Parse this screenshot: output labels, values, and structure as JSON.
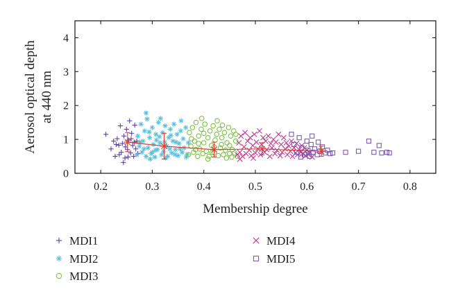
{
  "chart_data": {
    "type": "scatter",
    "xlabel": "Membership degree",
    "ylabel_lines": [
      "Aerosol optical depth",
      "at 440 nm"
    ],
    "xlim": [
      0.15,
      0.85
    ],
    "ylim": [
      0,
      4.5
    ],
    "xticks": [
      0.2,
      0.3,
      0.4,
      0.5,
      0.6,
      0.7,
      0.8
    ],
    "yticks": [
      0,
      1,
      2,
      3,
      4
    ],
    "grid": false,
    "legend_position": "below",
    "series": [
      {
        "name": "MDI1",
        "marker": "plus",
        "color": "#5b3fa8",
        "points": [
          [
            0.21,
            1.15
          ],
          [
            0.22,
            0.72
          ],
          [
            0.225,
            0.95
          ],
          [
            0.228,
            0.5
          ],
          [
            0.232,
            1.02
          ],
          [
            0.235,
            0.83
          ],
          [
            0.238,
            1.4
          ],
          [
            0.24,
            0.62
          ],
          [
            0.242,
            0.88
          ],
          [
            0.245,
            1.1
          ],
          [
            0.247,
            0.45
          ],
          [
            0.25,
            1.3
          ],
          [
            0.252,
            0.7
          ],
          [
            0.254,
            0.98
          ],
          [
            0.256,
            1.55
          ],
          [
            0.258,
            0.6
          ],
          [
            0.26,
            1.18
          ],
          [
            0.262,
            0.82
          ],
          [
            0.264,
            0.5
          ],
          [
            0.266,
            1.42
          ],
          [
            0.268,
            0.72
          ],
          [
            0.27,
            0.95
          ],
          [
            0.272,
            0.58
          ],
          [
            0.244,
            0.32
          ],
          [
            0.23,
            0.85
          ],
          [
            0.236,
            0.55
          ],
          [
            0.248,
            0.78
          ],
          [
            0.259,
            1.02
          ],
          [
            0.265,
            0.92
          ],
          [
            0.253,
            0.48
          ]
        ]
      },
      {
        "name": "MDI2",
        "marker": "asterisk",
        "color": "#5bc0de",
        "points": [
          [
            0.27,
            0.55
          ],
          [
            0.272,
            1.1
          ],
          [
            0.275,
            0.8
          ],
          [
            0.278,
            1.45
          ],
          [
            0.28,
            0.62
          ],
          [
            0.282,
            0.95
          ],
          [
            0.285,
            1.25
          ],
          [
            0.288,
            0.5
          ],
          [
            0.29,
            1.6
          ],
          [
            0.292,
            0.75
          ],
          [
            0.295,
            1.05
          ],
          [
            0.298,
            0.58
          ],
          [
            0.3,
            1.35
          ],
          [
            0.302,
            0.85
          ],
          [
            0.305,
            0.48
          ],
          [
            0.307,
            1.15
          ],
          [
            0.31,
            0.7
          ],
          [
            0.312,
            1.5
          ],
          [
            0.315,
            0.9
          ],
          [
            0.318,
            0.55
          ],
          [
            0.32,
            1.2
          ],
          [
            0.322,
            0.65
          ],
          [
            0.325,
            1.4
          ],
          [
            0.328,
            0.8
          ],
          [
            0.33,
            0.5
          ],
          [
            0.332,
            1.05
          ],
          [
            0.335,
            1.3
          ],
          [
            0.338,
            0.6
          ],
          [
            0.34,
            0.95
          ],
          [
            0.342,
            1.45
          ],
          [
            0.345,
            0.7
          ],
          [
            0.348,
            1.15
          ],
          [
            0.35,
            0.52
          ],
          [
            0.352,
            0.88
          ],
          [
            0.355,
            1.25
          ],
          [
            0.358,
            0.62
          ],
          [
            0.36,
            1.02
          ],
          [
            0.362,
            0.75
          ],
          [
            0.365,
            1.35
          ],
          [
            0.368,
            0.55
          ],
          [
            0.37,
            0.9
          ],
          [
            0.288,
            1.78
          ],
          [
            0.296,
            0.42
          ],
          [
            0.308,
            0.98
          ],
          [
            0.316,
            1.62
          ],
          [
            0.326,
            0.45
          ],
          [
            0.334,
            0.72
          ],
          [
            0.346,
            0.92
          ],
          [
            0.356,
            1.55
          ],
          [
            0.366,
            0.48
          ],
          [
            0.284,
            0.72
          ],
          [
            0.3,
            0.62
          ],
          [
            0.314,
            1.08
          ],
          [
            0.324,
            0.92
          ],
          [
            0.344,
            0.55
          ],
          [
            0.354,
            0.72
          ],
          [
            0.276,
            0.92
          ],
          [
            0.294,
            1.22
          ],
          [
            0.306,
            0.68
          ],
          [
            0.336,
            1.12
          ]
        ]
      },
      {
        "name": "MDI3",
        "marker": "circle",
        "color": "#7dc242",
        "points": [
          [
            0.37,
            0.55
          ],
          [
            0.372,
            1.2
          ],
          [
            0.375,
            0.8
          ],
          [
            0.378,
            1.35
          ],
          [
            0.38,
            0.62
          ],
          [
            0.382,
            0.95
          ],
          [
            0.385,
            1.5
          ],
          [
            0.388,
            0.5
          ],
          [
            0.39,
            1.1
          ],
          [
            0.392,
            0.72
          ],
          [
            0.395,
            1.3
          ],
          [
            0.398,
            0.58
          ],
          [
            0.4,
            0.9
          ],
          [
            0.402,
            1.45
          ],
          [
            0.405,
            0.65
          ],
          [
            0.408,
            1.05
          ],
          [
            0.41,
            0.5
          ],
          [
            0.412,
            1.25
          ],
          [
            0.415,
            0.82
          ],
          [
            0.418,
            1.4
          ],
          [
            0.42,
            0.6
          ],
          [
            0.422,
            0.98
          ],
          [
            0.425,
            1.15
          ],
          [
            0.428,
            0.52
          ],
          [
            0.43,
            1.3
          ],
          [
            0.432,
            0.75
          ],
          [
            0.435,
            1.05
          ],
          [
            0.438,
            0.55
          ],
          [
            0.44,
            1.2
          ],
          [
            0.442,
            0.68
          ],
          [
            0.445,
            0.9
          ],
          [
            0.448,
            1.35
          ],
          [
            0.45,
            0.58
          ],
          [
            0.452,
            1.1
          ],
          [
            0.455,
            0.7
          ],
          [
            0.458,
            1.25
          ],
          [
            0.46,
            0.6
          ],
          [
            0.462,
            0.95
          ],
          [
            0.465,
            0.5
          ],
          [
            0.396,
            1.62
          ],
          [
            0.408,
            0.42
          ],
          [
            0.426,
            1.55
          ],
          [
            0.444,
            0.45
          ],
          [
            0.384,
            0.7
          ],
          [
            0.4,
            1.18
          ],
          [
            0.416,
            0.62
          ],
          [
            0.434,
            0.85
          ],
          [
            0.454,
            0.48
          ],
          [
            0.376,
            1.02
          ],
          [
            0.39,
            0.88
          ],
          [
            0.42,
            0.78
          ],
          [
            0.436,
            1.42
          ],
          [
            0.45,
            0.82
          ],
          [
            0.462,
            1.15
          ]
        ]
      },
      {
        "name": "MDI4",
        "marker": "x",
        "color": "#c0398f",
        "points": [
          [
            0.465,
            0.55
          ],
          [
            0.468,
            0.9
          ],
          [
            0.47,
            0.62
          ],
          [
            0.472,
            1.1
          ],
          [
            0.475,
            0.5
          ],
          [
            0.478,
            0.78
          ],
          [
            0.48,
            1.2
          ],
          [
            0.482,
            0.58
          ],
          [
            0.485,
            0.95
          ],
          [
            0.488,
            0.68
          ],
          [
            0.49,
            1.05
          ],
          [
            0.492,
            0.52
          ],
          [
            0.495,
            0.82
          ],
          [
            0.498,
            1.15
          ],
          [
            0.5,
            0.6
          ],
          [
            0.502,
            0.92
          ],
          [
            0.505,
            0.72
          ],
          [
            0.508,
            1.25
          ],
          [
            0.51,
            0.55
          ],
          [
            0.512,
            0.85
          ],
          [
            0.515,
            1.05
          ],
          [
            0.518,
            0.62
          ],
          [
            0.52,
            0.95
          ],
          [
            0.522,
            0.7
          ],
          [
            0.525,
            1.1
          ],
          [
            0.528,
            0.5
          ],
          [
            0.53,
            0.88
          ],
          [
            0.532,
            0.75
          ],
          [
            0.535,
            1.0
          ],
          [
            0.538,
            0.58
          ],
          [
            0.54,
            0.92
          ],
          [
            0.542,
            0.68
          ],
          [
            0.545,
            1.15
          ],
          [
            0.548,
            0.52
          ],
          [
            0.55,
            0.85
          ],
          [
            0.552,
            0.62
          ],
          [
            0.555,
            1.05
          ],
          [
            0.558,
            0.72
          ],
          [
            0.56,
            0.9
          ],
          [
            0.562,
            0.55
          ],
          [
            0.565,
            0.8
          ],
          [
            0.568,
            0.65
          ],
          [
            0.57,
            0.95
          ],
          [
            0.572,
            0.5
          ],
          [
            0.575,
            0.75
          ],
          [
            0.578,
            0.6
          ],
          [
            0.58,
            0.88
          ],
          [
            0.582,
            0.55
          ],
          [
            0.585,
            0.7
          ],
          [
            0.588,
            0.62
          ],
          [
            0.59,
            0.82
          ],
          [
            0.592,
            0.58
          ],
          [
            0.595,
            0.75
          ],
          [
            0.598,
            0.52
          ],
          [
            0.6,
            0.68
          ],
          [
            0.603,
            0.55
          ],
          [
            0.606,
            0.62
          ],
          [
            0.61,
            0.48
          ],
          [
            0.47,
            0.42
          ],
          [
            0.496,
            0.45
          ]
        ]
      },
      {
        "name": "MDI5",
        "marker": "square",
        "color": "#7b5ab2",
        "points": [
          [
            0.57,
            1.15
          ],
          [
            0.575,
            0.85
          ],
          [
            0.58,
            0.62
          ],
          [
            0.585,
            1.05
          ],
          [
            0.59,
            0.75
          ],
          [
            0.595,
            0.55
          ],
          [
            0.6,
            0.95
          ],
          [
            0.602,
            0.68
          ],
          [
            0.605,
            0.5
          ],
          [
            0.608,
            0.85
          ],
          [
            0.61,
            1.1
          ],
          [
            0.612,
            0.62
          ],
          [
            0.615,
            0.72
          ],
          [
            0.62,
            0.55
          ],
          [
            0.622,
            0.92
          ],
          [
            0.625,
            0.65
          ],
          [
            0.63,
            0.78
          ],
          [
            0.635,
            0.6
          ],
          [
            0.64,
            0.68
          ],
          [
            0.645,
            0.58
          ],
          [
            0.65,
            0.6
          ],
          [
            0.675,
            0.62
          ],
          [
            0.7,
            0.65
          ],
          [
            0.72,
            0.95
          ],
          [
            0.73,
            0.62
          ],
          [
            0.74,
            0.82
          ],
          [
            0.745,
            0.6
          ],
          [
            0.755,
            0.62
          ],
          [
            0.76,
            0.6
          ],
          [
            0.588,
            0.48
          ]
        ]
      }
    ],
    "mean_series": {
      "color": "#e03c31",
      "marker": "asterisk",
      "points": [
        {
          "x": 0.252,
          "y": 0.92,
          "err": 0.28
        },
        {
          "x": 0.323,
          "y": 0.8,
          "err": 0.38
        },
        {
          "x": 0.42,
          "y": 0.7,
          "err": 0.22
        },
        {
          "x": 0.513,
          "y": 0.72,
          "err": 0.18
        },
        {
          "x": 0.628,
          "y": 0.65,
          "err": 0.15
        }
      ]
    }
  }
}
